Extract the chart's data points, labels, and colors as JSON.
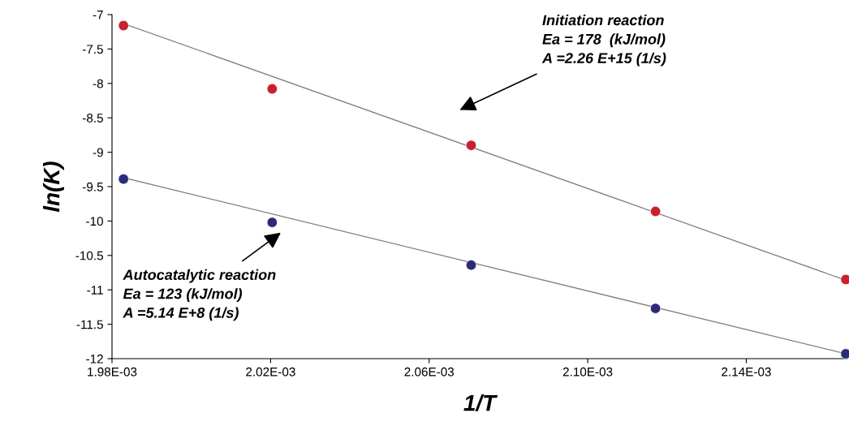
{
  "chart_data": {
    "type": "scatter",
    "xlabel": "1/T",
    "ylabel": "ln(K)",
    "xlim": [
      0.00198,
      0.0021655
    ],
    "ylim": [
      -12,
      -7
    ],
    "xticks": [
      {
        "value": 0.00198,
        "label": "1.98E-03"
      },
      {
        "value": 0.00202,
        "label": "2.02E-03"
      },
      {
        "value": 0.00206,
        "label": "2.06E-03"
      },
      {
        "value": 0.0021,
        "label": "2.10E-03"
      },
      {
        "value": 0.00214,
        "label": "2.14E-03"
      }
    ],
    "yticks": [
      -7,
      -7.5,
      -8,
      -8.5,
      -9,
      -9.5,
      -10,
      -10.5,
      -11,
      -11.5,
      -12
    ],
    "grid": false,
    "legend": false,
    "series": [
      {
        "color": "#c8202e",
        "x": [
          0.0019829,
          0.0020204,
          0.0020706,
          0.0021171,
          0.0021651
        ],
        "values": [
          -7.16,
          -8.08,
          -8.9,
          -9.86,
          -10.85
        ]
      },
      {
        "color": "#2b2a7a",
        "x": [
          0.0019829,
          0.0020204,
          0.0020706,
          0.0021171,
          0.0021651
        ],
        "values": [
          -9.39,
          -10.02,
          -10.64,
          -11.27,
          -11.93
        ]
      },
      {
        "type": "line",
        "marker": "none",
        "color": "#808080",
        "x": [
          0.0019829,
          0.0021651
        ],
        "values": [
          -7.13,
          -10.86
        ]
      },
      {
        "type": "line",
        "marker": "none",
        "color": "#808080",
        "x": [
          0.0019829,
          0.0021651
        ],
        "values": [
          -9.37,
          -11.93
        ]
      }
    ],
    "annotations": [
      "Initiation reaction\nEa = 178  (kJ/mol)\nA =2.26 E+15 (1/s)",
      "Autocatalytic reaction\nEa = 123 (kJ/mol)\nA =5.14 E+8 (1/s)"
    ]
  }
}
